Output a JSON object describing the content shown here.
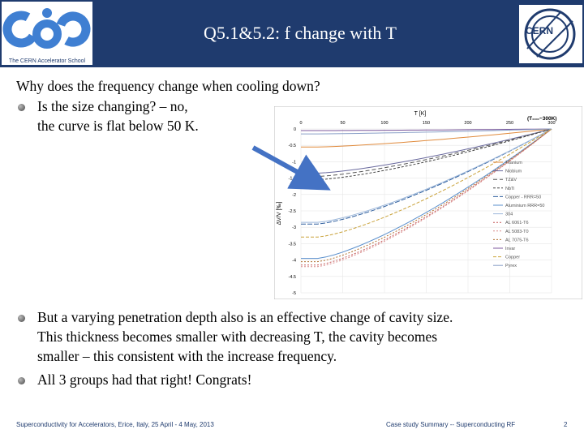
{
  "header": {
    "title": "Q5.1&5.2: f change with T",
    "left_logo": {
      "icon": "cas-logo",
      "caption": "The CERN Accelerator School"
    },
    "right_logo": {
      "icon": "cern-logo",
      "text": "CERN"
    },
    "bg_color": "#1f3b6e"
  },
  "content": {
    "question": "Why does the frequency change when cooling down?",
    "bullet1_line1": "Is the size changing? – no,",
    "bullet1_line2": "the curve is flat below 50 K.",
    "bullet2_line1": "But a varying penetration depth also is an effective change of cavity size.",
    "bullet2_line2": "This thickness becomes smaller with decreasing T, the cavity becomes",
    "bullet2_line3": "smaller – this consistent with the increase frequency.",
    "bullet3": "All 3 groups had that right! Congrats!"
  },
  "chart_data": {
    "type": "line",
    "title": "T [K]",
    "corner_label": "(T₀₀₀~300K)",
    "xlabel": "T [K]",
    "ylabel": "ΔV/V [‰]",
    "xlim": [
      0,
      300
    ],
    "ylim": [
      -5,
      0
    ],
    "x_ticks": [
      "0",
      "50",
      "100",
      "150",
      "200",
      "250",
      "300"
    ],
    "y_ticks": [
      "0",
      "-0.5",
      "-1",
      "-1.5",
      "-2",
      "-2.5",
      "-3",
      "-3.5",
      "-4",
      "-4.5",
      "-5"
    ],
    "legend_position": "right",
    "series": [
      {
        "name": "Titanium",
        "color": "#e08a3c",
        "dash": "",
        "end": -0.55
      },
      {
        "name": "Niobium",
        "color": "#6a6a9e",
        "dash": "",
        "end": -1.35
      },
      {
        "name": "TZ&V",
        "color": "#555555",
        "dash": "5,3",
        "end": -1.45
      },
      {
        "name": "NbTi",
        "color": "#444444",
        "dash": "3,2",
        "end": -1.55
      },
      {
        "name": "Copper - RRR=50",
        "color": "#2f5f9e",
        "dash": "6,2",
        "end": -2.9
      },
      {
        "name": "Aluminium RRR=50",
        "color": "#5a8fcc",
        "dash": "",
        "end": -3.95
      },
      {
        "name": "304",
        "color": "#9cb7da",
        "dash": "",
        "end": -2.85
      },
      {
        "name": "AL 6061-T6",
        "color": "#c55a5a",
        "dash": "2,2",
        "end": -4.15
      },
      {
        "name": "AL 5083-T0",
        "color": "#d98d8d",
        "dash": "2,2",
        "end": -4.2
      },
      {
        "name": "AL 7075-T6",
        "color": "#b07030",
        "dash": "2,2",
        "end": -4.05
      },
      {
        "name": "Invar",
        "color": "#7c5a9e",
        "dash": "",
        "end": -0.05
      },
      {
        "name": "Copper",
        "color": "#c9a23a",
        "dash": "4,2",
        "end": -3.3
      },
      {
        "name": "Pyrex",
        "color": "#8aa0c8",
        "dash": "",
        "end": -0.15
      }
    ],
    "arrow": {
      "from": [
        -50,
        -0.2
      ],
      "to": [
        5,
        -1.5
      ],
      "color": "#4472c4"
    }
  },
  "footer": {
    "left": "Superconductivity for Accelerators, Erice, Italy, 25 April - 4 May, 2013",
    "center": "Case study Summary -- Superconducting RF",
    "page": "2"
  }
}
